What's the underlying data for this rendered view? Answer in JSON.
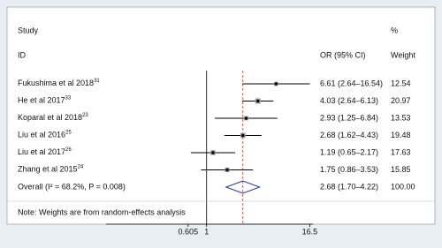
{
  "chart_data": {
    "type": "forest",
    "headers": {
      "study": "Study",
      "id": "ID",
      "ci": "OR (95% CI)",
      "pct": "%",
      "weight": "Weight"
    },
    "studies": [
      {
        "name": "Fukushima et al 2018",
        "ref": "31",
        "or": 6.61,
        "lower": 2.64,
        "upper": 16.54,
        "or_label": "6.61 (2.64–16.54)",
        "weight": 12.54
      },
      {
        "name": "He et al 2017",
        "ref": "33",
        "or": 4.03,
        "lower": 2.64,
        "upper": 6.13,
        "or_label": "4.03 (2.64–6.13)",
        "weight": 20.97
      },
      {
        "name": "Koparal et al 2018",
        "ref": "23",
        "or": 2.93,
        "lower": 1.25,
        "upper": 6.84,
        "or_label": "2.93 (1.25–6.84)",
        "weight": 13.53
      },
      {
        "name": "Liu et al 2016",
        "ref": "25",
        "or": 2.68,
        "lower": 1.62,
        "upper": 4.43,
        "or_label": "2.68 (1.62–4.43)",
        "weight": 19.48
      },
      {
        "name": "Liu et al 2017",
        "ref": "26",
        "or": 1.19,
        "lower": 0.65,
        "upper": 2.17,
        "or_label": "1.19 (0.65–2.17)",
        "weight": 17.63
      },
      {
        "name": "Zhang et al 2015",
        "ref": "24",
        "or": 1.75,
        "lower": 0.86,
        "upper": 3.53,
        "or_label": "1.75 (0.86–3.53)",
        "weight": 15.85
      }
    ],
    "overall": {
      "name": "Overall (I² = 68.2%, P = 0.008)",
      "or": 2.68,
      "lower": 1.7,
      "upper": 4.22,
      "or_label": "2.68 (1.70–4.22)",
      "weight": 100,
      "weight_label": "100.00"
    },
    "note": "Note: Weights are from random-effects analysis",
    "xscale": "log",
    "xlim": [
      0.17,
      18
    ],
    "xticks": [
      0.605,
      1,
      16.5
    ],
    "box_color": "#9a9a9a",
    "diamond_color": "#1f3a93",
    "overall_line_color": "#c0392b"
  }
}
